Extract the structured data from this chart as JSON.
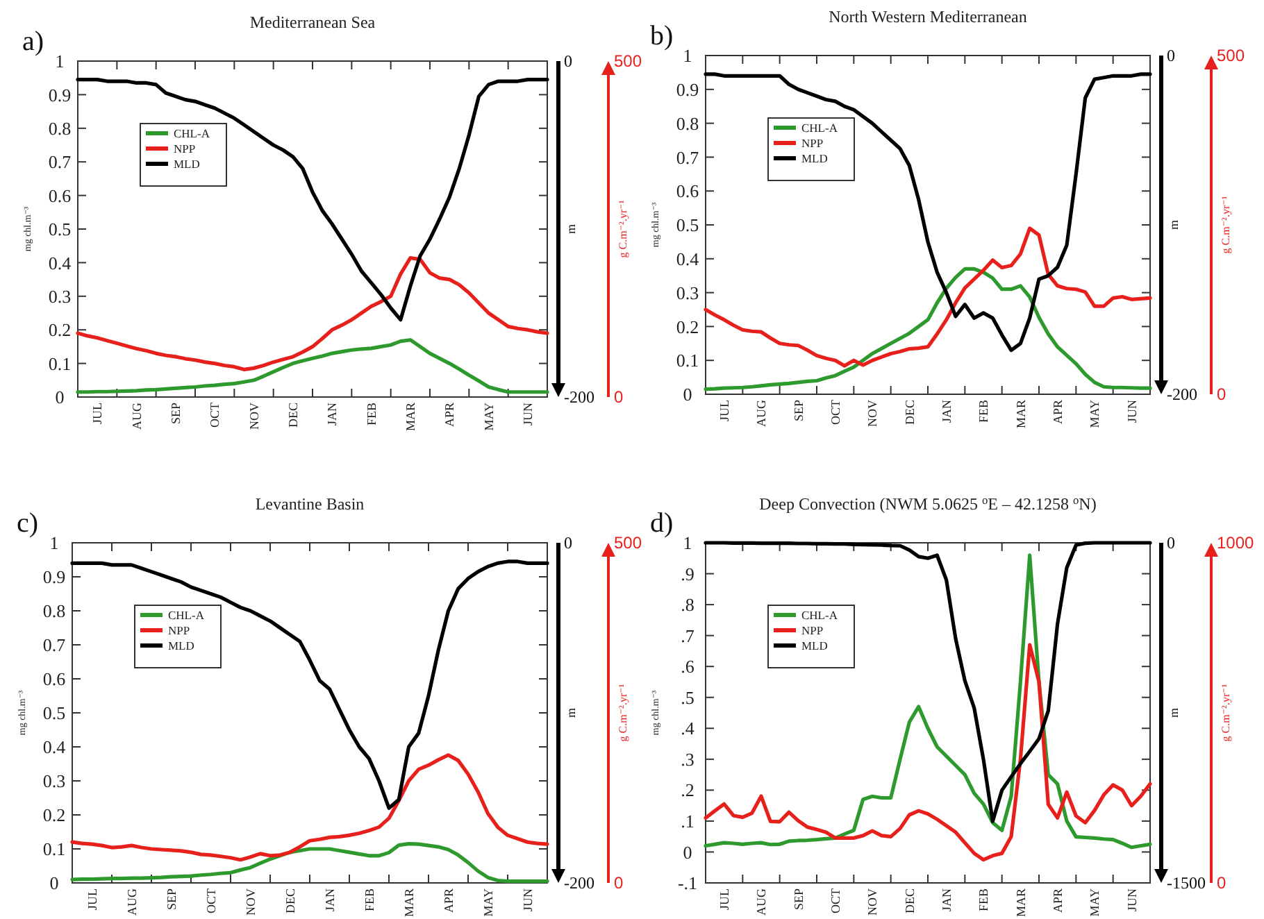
{
  "chart_data": [
    {
      "type": "line",
      "title": "Mediterranean Sea",
      "annotations": [
        "a)"
      ],
      "ylabel": "mg chl.m⁻³",
      "y2label": "m",
      "y3label": "g C.m⁻².yr⁻¹",
      "legend": "top left",
      "categories": [
        null,
        null,
        "JUL",
        null,
        null,
        null,
        "AUG",
        null,
        null,
        null,
        "SEP",
        null,
        null,
        null,
        "OCT",
        null,
        null,
        null,
        "NOV",
        null,
        null,
        null,
        "DEC",
        null,
        null,
        null,
        "JAN",
        null,
        null,
        null,
        "FEB",
        null,
        null,
        null,
        "MAR",
        null,
        null,
        null,
        "APR",
        null,
        null,
        null,
        "MAY",
        null,
        null,
        null,
        "JUN",
        null,
        null
      ],
      "ylim": [
        0,
        1
      ],
      "yticks": [
        0,
        0.1,
        0.2,
        0.3,
        0.4,
        0.5,
        0.6,
        0.7,
        0.8,
        0.9,
        1
      ],
      "y2lim": [
        -200,
        0
      ],
      "y2ticks": [
        -200,
        0
      ],
      "y3lim": [
        0,
        500
      ],
      "y3ticks": [
        0,
        500
      ],
      "series": [
        {
          "name": "CHL-A",
          "color": "#2e9a2e",
          "values": [
            0.015,
            0.015,
            0.016,
            0.016,
            0.017,
            0.018,
            0.019,
            0.021,
            0.022,
            0.024,
            0.026,
            0.028,
            0.03,
            0.033,
            0.035,
            0.038,
            0.04,
            0.045,
            0.05,
            0.062,
            0.075,
            0.088,
            0.1,
            0.108,
            0.115,
            0.122,
            0.13,
            0.135,
            0.14,
            0.143,
            0.145,
            0.15,
            0.155,
            0.166,
            0.17,
            0.15,
            0.13,
            0.115,
            0.1,
            0.083,
            0.065,
            0.048,
            0.03,
            0.022,
            0.015,
            0.015,
            0.015,
            0.015,
            0.015
          ]
        },
        {
          "name": "NPP",
          "color": "#e8201c",
          "axis": "y3",
          "values": [
            95,
            91,
            88,
            84,
            80,
            76,
            72,
            69,
            65,
            62,
            60,
            57,
            55,
            52,
            50,
            47,
            45,
            41,
            43,
            47,
            52,
            56,
            60,
            67,
            75,
            87,
            100,
            107,
            115,
            125,
            135,
            142,
            150,
            183,
            207,
            205,
            185,
            177,
            175,
            167,
            155,
            140,
            125,
            115,
            105,
            102,
            100,
            97,
            95
          ]
        },
        {
          "name": "MLD",
          "color": "#000000",
          "axis": "y2",
          "values": [
            -11,
            -11,
            -11,
            -12,
            -12,
            -12,
            -13,
            -13,
            -14,
            -19,
            -21,
            -23,
            -24,
            -26,
            -28,
            -31,
            -34,
            -38,
            -42,
            -46,
            -50,
            -53,
            -57,
            -64,
            -78,
            -89,
            -97,
            -106,
            -115,
            -125,
            -132,
            -139,
            -147,
            -154,
            -134,
            -116,
            -106,
            -94,
            -81,
            -64,
            -44,
            -21,
            -14,
            -12,
            -12,
            -12,
            -11,
            -11,
            -11
          ]
        }
      ]
    },
    {
      "type": "line",
      "title": "North Western Mediterranean",
      "annotations": [
        "b)"
      ],
      "ylabel": "mg chl.m⁻³",
      "y2label": "m",
      "y3label": "g C.m⁻².yr⁻¹",
      "legend": "top left",
      "categories": [
        null,
        null,
        "JUL",
        null,
        null,
        null,
        "AUG",
        null,
        null,
        null,
        "SEP",
        null,
        null,
        null,
        "OCT",
        null,
        null,
        null,
        "NOV",
        null,
        null,
        null,
        "DEC",
        null,
        null,
        null,
        "JAN",
        null,
        null,
        null,
        "FEB",
        null,
        null,
        null,
        "MAR",
        null,
        null,
        null,
        "APR",
        null,
        null,
        null,
        "MAY",
        null,
        null,
        null,
        "JUN",
        null,
        null
      ],
      "ylim": [
        0,
        1
      ],
      "yticks": [
        0,
        0.1,
        0.2,
        0.3,
        0.4,
        0.5,
        0.6,
        0.7,
        0.8,
        0.9,
        1
      ],
      "y2lim": [
        -200,
        0
      ],
      "y2ticks": [
        -200,
        0
      ],
      "y3lim": [
        0,
        500
      ],
      "y3ticks": [
        0,
        500
      ],
      "series": [
        {
          "name": "CHL-A",
          "color": "#2e9a2e",
          "values": [
            0.015,
            0.016,
            0.018,
            0.019,
            0.02,
            0.022,
            0.025,
            0.028,
            0.03,
            0.032,
            0.035,
            0.038,
            0.04,
            0.048,
            0.055,
            0.068,
            0.08,
            0.1,
            0.12,
            0.135,
            0.15,
            0.165,
            0.18,
            0.2,
            0.22,
            0.27,
            0.313,
            0.345,
            0.37,
            0.37,
            0.36,
            0.343,
            0.31,
            0.31,
            0.32,
            0.287,
            0.227,
            0.178,
            0.14,
            0.115,
            0.09,
            0.059,
            0.035,
            0.022,
            0.02,
            0.02,
            0.019,
            0.018,
            0.018
          ]
        },
        {
          "name": "NPP",
          "color": "#e8201c",
          "axis": "y3",
          "values": [
            125,
            117,
            110,
            102,
            95,
            93,
            92,
            83,
            75,
            73,
            72,
            65,
            57,
            53,
            50,
            42,
            50,
            43,
            50,
            55,
            60,
            63,
            67,
            68,
            70,
            89,
            110,
            135,
            157,
            170,
            183,
            198,
            187,
            190,
            207,
            245,
            235,
            177,
            160,
            156,
            155,
            151,
            130,
            130,
            142,
            144,
            140,
            141,
            142
          ]
        },
        {
          "name": "MLD",
          "color": "#000000",
          "axis": "y2",
          "values": [
            -11,
            -11,
            -12,
            -12,
            -12,
            -12,
            -12,
            -12,
            -12,
            -17,
            -20,
            -22,
            -24,
            -26,
            -27,
            -30,
            -32,
            -36,
            -40,
            -45,
            -50,
            -55,
            -65,
            -85,
            -110,
            -128,
            -140,
            -154,
            -147,
            -155,
            -152,
            -155,
            -165,
            -174,
            -170,
            -155,
            -132,
            -130,
            -125,
            -112,
            -70,
            -25,
            -14,
            -13,
            -12,
            -12,
            -12,
            -11,
            -11
          ]
        }
      ]
    },
    {
      "type": "line",
      "title": "Levantine Basin",
      "annotations": [
        "c)"
      ],
      "ylabel": "mg chl.m⁻³",
      "y2label": "m",
      "y3label": "g C.m⁻².yr⁻¹",
      "legend": "top left",
      "categories": [
        null,
        null,
        "JUL",
        null,
        null,
        null,
        "AUG",
        null,
        null,
        null,
        "SEP",
        null,
        null,
        null,
        "OCT",
        null,
        null,
        null,
        "NOV",
        null,
        null,
        null,
        "DEC",
        null,
        null,
        null,
        "JAN",
        null,
        null,
        null,
        "FEB",
        null,
        null,
        null,
        "MAR",
        null,
        null,
        null,
        "APR",
        null,
        null,
        null,
        "MAY",
        null,
        null,
        null,
        "JUN",
        null,
        null
      ],
      "ylim": [
        0,
        1
      ],
      "yticks": [
        0,
        0.1,
        0.2,
        0.3,
        0.4,
        0.5,
        0.6,
        0.7,
        0.8,
        0.9,
        1
      ],
      "y2lim": [
        -200,
        0
      ],
      "y2ticks": [
        -200,
        0
      ],
      "y3lim": [
        0,
        500
      ],
      "y3ticks": [
        0,
        500
      ],
      "series": [
        {
          "name": "CHL-A",
          "color": "#2e9a2e",
          "values": [
            0.01,
            0.011,
            0.011,
            0.012,
            0.013,
            0.013,
            0.014,
            0.014,
            0.015,
            0.016,
            0.018,
            0.019,
            0.02,
            0.023,
            0.025,
            0.028,
            0.03,
            0.038,
            0.045,
            0.058,
            0.07,
            0.08,
            0.09,
            0.095,
            0.1,
            0.1,
            0.1,
            0.095,
            0.09,
            0.085,
            0.08,
            0.08,
            0.089,
            0.111,
            0.115,
            0.114,
            0.11,
            0.106,
            0.098,
            0.082,
            0.06,
            0.035,
            0.016,
            0.007,
            0.005,
            0.005,
            0.005,
            0.005,
            0.005
          ]
        },
        {
          "name": "NPP",
          "color": "#e8201c",
          "axis": "y3",
          "values": [
            60,
            58,
            57,
            55,
            52,
            53,
            55,
            52,
            50,
            49,
            48,
            47,
            45,
            42,
            41,
            39,
            37,
            34,
            38,
            43,
            40,
            41,
            45,
            53,
            62,
            64,
            67,
            68,
            70,
            73,
            77,
            82,
            95,
            121,
            150,
            167,
            173,
            181,
            188,
            180,
            160,
            134,
            102,
            82,
            70,
            65,
            60,
            58,
            57
          ]
        },
        {
          "name": "MLD",
          "color": "#000000",
          "axis": "y2",
          "values": [
            -12,
            -12,
            -12,
            -12,
            -13,
            -13,
            -13,
            -15,
            -17,
            -19,
            -21,
            -23,
            -26,
            -28,
            -30,
            -32,
            -35,
            -38,
            -40,
            -43,
            -46,
            -50,
            -54,
            -58,
            -69,
            -81,
            -86,
            -98,
            -110,
            -120,
            -127,
            -140,
            -156,
            -151,
            -120,
            -112,
            -90,
            -63,
            -40,
            -27,
            -21,
            -17,
            -14,
            -12,
            -11,
            -11,
            -12,
            -12,
            -12
          ]
        }
      ]
    },
    {
      "type": "line",
      "title": "Deep Convection (NWM 5.0625 $^{o}$E – 42.1258 $^{o}$N)",
      "annotations": [
        "d)"
      ],
      "ylabel": "mg chl.m⁻³",
      "y2label": "m",
      "y3label": "g C.m⁻².yr⁻¹",
      "legend": "top left",
      "categories": [
        null,
        null,
        "JUL",
        null,
        null,
        null,
        "AUG",
        null,
        null,
        null,
        "SEP",
        null,
        null,
        null,
        "OCT",
        null,
        null,
        null,
        "NOV",
        null,
        null,
        null,
        "DEC",
        null,
        null,
        null,
        "JAN",
        null,
        null,
        null,
        "FEB",
        null,
        null,
        null,
        "MAR",
        null,
        null,
        null,
        "APR",
        null,
        null,
        null,
        "MAY",
        null,
        null,
        null,
        "JUN",
        null,
        null
      ],
      "ylim": [
        -0.1,
        1
      ],
      "yticks": [
        {
          "value": -0.1,
          "label": "-.1"
        },
        0,
        {
          "value": 0.1,
          "label": ".1"
        },
        {
          "value": 0.2,
          "label": ".2"
        },
        {
          "value": 0.3,
          "label": ".3"
        },
        {
          "value": 0.4,
          "label": ".4"
        },
        {
          "value": 0.5,
          "label": ".5"
        },
        {
          "value": 0.6,
          "label": ".6"
        },
        {
          "value": 0.7,
          "label": ".7"
        },
        {
          "value": 0.8,
          "label": ".8"
        },
        {
          "value": 0.9,
          "label": ".9"
        },
        1
      ],
      "y2lim": [
        -1500,
        0
      ],
      "y2ticks": [
        -1500,
        0
      ],
      "y3lim": [
        0,
        1000
      ],
      "y3ticks": [
        0,
        1000
      ],
      "series": [
        {
          "name": "CHL-A",
          "color": "#2e9a2e",
          "values": [
            0.02,
            0.025,
            0.03,
            0.028,
            0.025,
            0.028,
            0.03,
            0.024,
            0.025,
            0.035,
            0.037,
            0.038,
            0.04,
            0.043,
            0.045,
            0.058,
            0.07,
            0.17,
            0.18,
            0.175,
            0.175,
            0.3,
            0.42,
            0.47,
            0.4,
            0.34,
            0.31,
            0.28,
            0.25,
            0.19,
            0.155,
            0.095,
            0.07,
            0.18,
            0.55,
            0.96,
            0.55,
            0.25,
            0.22,
            0.1,
            0.049,
            0.047,
            0.045,
            0.042,
            0.04,
            0.028,
            0.015,
            0.02,
            0.025
          ]
        },
        {
          "name": "NPP",
          "color": "#e8201c",
          "axis": "y3",
          "values": [
            191,
            212,
            232,
            198,
            193,
            205,
            255,
            181,
            180,
            208,
            183,
            164,
            157,
            149,
            132,
            132,
            132,
            139,
            153,
            139,
            136,
            160,
            200,
            212,
            203,
            187,
            168,
            149,
            118,
            87,
            68,
            80,
            87,
            136,
            364,
            700,
            591,
            231,
            191,
            267,
            197,
            177,
            213,
            259,
            288,
            273,
            227,
            255,
            291
          ]
        },
        {
          "name": "MLD",
          "color": "#000000",
          "axis": "y2",
          "values": [
            0,
            0,
            0,
            -1,
            -1,
            -1,
            -2,
            -2,
            -2,
            -2,
            -3,
            -3,
            -4,
            -4,
            -5,
            -5,
            -7,
            -8,
            -9,
            -10,
            -12,
            -13,
            -32,
            -61,
            -68,
            -55,
            -164,
            -423,
            -609,
            -728,
            -955,
            -1228,
            -1091,
            -1032,
            -974,
            -920,
            -864,
            -741,
            -358,
            -110,
            -10,
            -2,
            0,
            0,
            0,
            0,
            0,
            0,
            0
          ]
        }
      ]
    }
  ]
}
